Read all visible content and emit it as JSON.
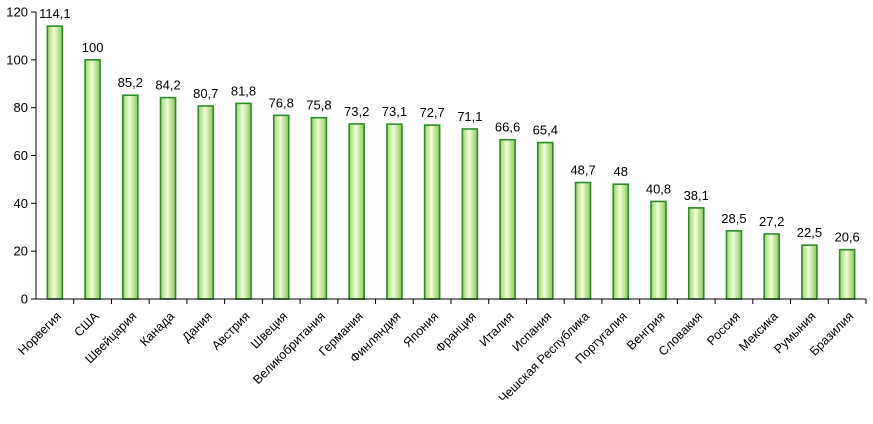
{
  "chart_data": {
    "type": "bar",
    "title": "",
    "xlabel": "",
    "ylabel": "",
    "ylim": [
      0,
      120
    ],
    "y_ticks": [
      "0",
      "20",
      "40",
      "60",
      "80",
      "100",
      "120"
    ],
    "grid": false,
    "legend": "none",
    "bar_colors": {
      "fill_light": "#eefbd2",
      "fill_dark": "#8fd458",
      "border": "#2e8b2e",
      "axis": "#000000"
    },
    "categories": [
      "Норвегия",
      "США",
      "Швейцария",
      "Канада",
      "Дания",
      "Австрия",
      "Швеция",
      "Великобритания",
      "Германия",
      "Финляндия",
      "Япония",
      "Франция",
      "Италия",
      "Испания",
      "Чешская Республика",
      "Португалия",
      "Венгрия",
      "Словакия",
      "Россия",
      "Мексика",
      "Румыния",
      "Бразилия"
    ],
    "values": [
      114.1,
      100,
      85.2,
      84.2,
      80.7,
      81.8,
      76.8,
      75.8,
      73.2,
      73.1,
      72.7,
      71.1,
      66.6,
      65.4,
      48.7,
      48,
      40.8,
      38.1,
      28.5,
      27.2,
      22.5,
      20.6
    ],
    "value_labels": [
      "114,1",
      "100",
      "85,2",
      "84,2",
      "80,7",
      "81,8",
      "76,8",
      "75,8",
      "73,2",
      "73,1",
      "72,7",
      "71,1",
      "66,6",
      "65,4",
      "48,7",
      "48",
      "40,8",
      "38,1",
      "28,5",
      "27,2",
      "22,5",
      "20,6"
    ]
  }
}
